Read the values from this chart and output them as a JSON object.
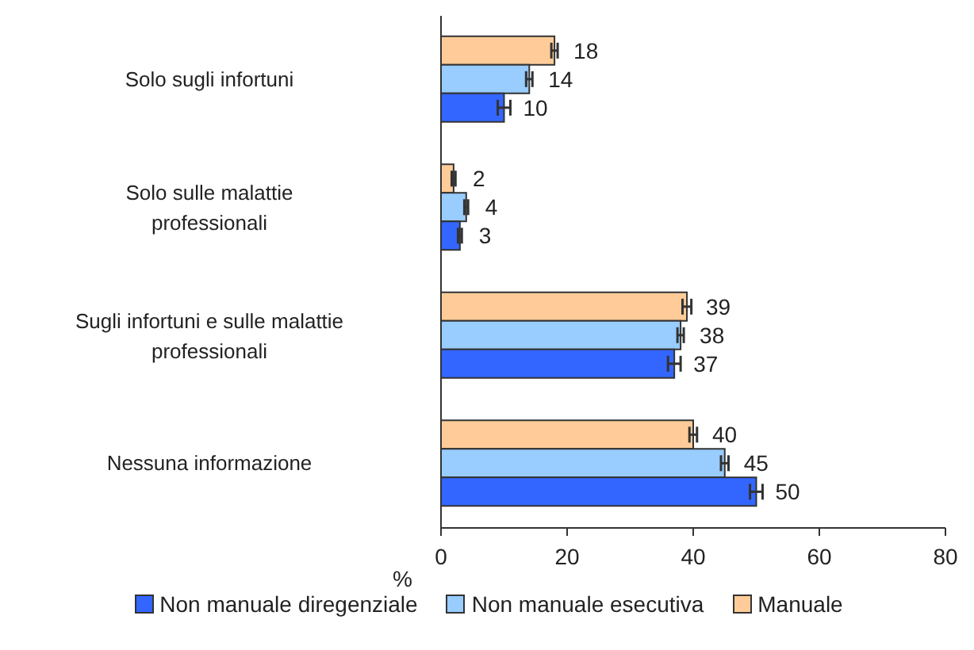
{
  "chart_data": {
    "type": "bar",
    "orientation": "horizontal",
    "categories": [
      "Solo sugli infortuni",
      "Solo sulle malattie professionali",
      "Sugli infortuni e sulle malattie professionali",
      "Nessuna informazione"
    ],
    "series": [
      {
        "name": "Non manuale diregenziale",
        "color": "#3366ff",
        "values": [
          10,
          3,
          37,
          50
        ],
        "errors": [
          1,
          0.3,
          1,
          1
        ]
      },
      {
        "name": "Non manuale esecutiva",
        "color": "#99ccff",
        "values": [
          14,
          4,
          38,
          45
        ],
        "errors": [
          0.5,
          0.3,
          0.5,
          0.6
        ]
      },
      {
        "name": "Manuale",
        "color": "#ffcc99",
        "values": [
          18,
          2,
          39,
          40
        ],
        "errors": [
          0.5,
          0.3,
          0.7,
          0.6
        ]
      }
    ],
    "xlabel": "%",
    "xlim": [
      0,
      80
    ],
    "xticks": [
      0,
      20,
      40,
      60,
      80
    ],
    "data_labels": true,
    "legend": "bottom",
    "grid": false
  }
}
